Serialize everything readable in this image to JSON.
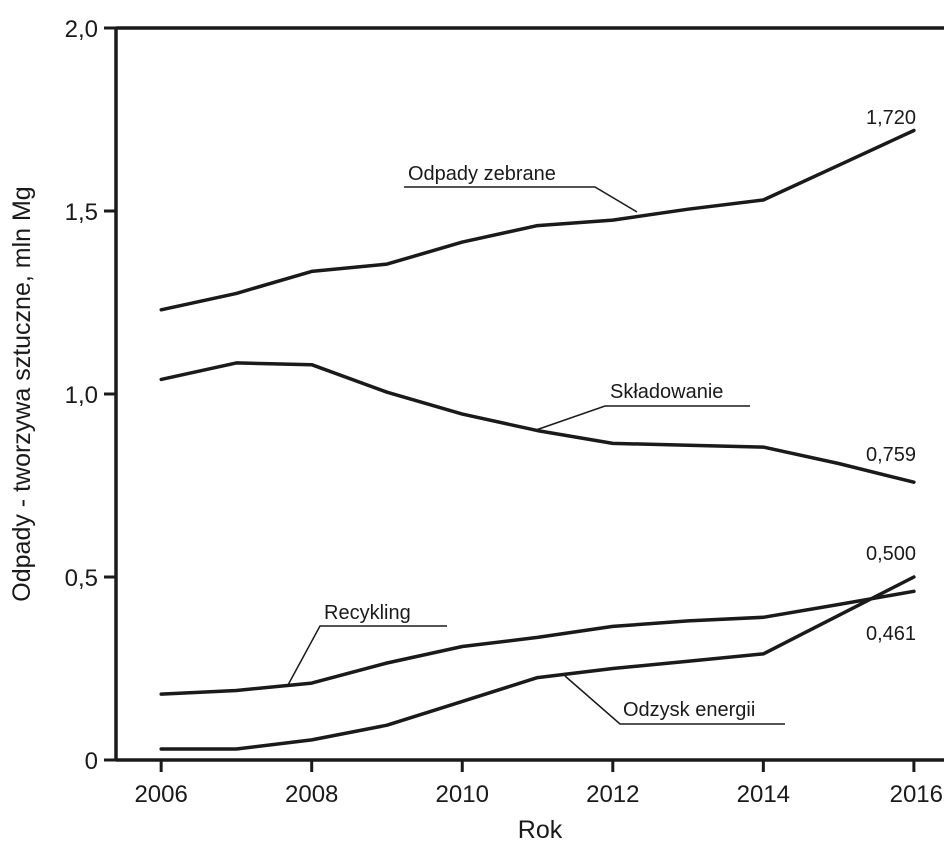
{
  "chart_data": {
    "type": "line",
    "xlabel": "Rok",
    "ylabel": "Odpady - tworzywa sztuczne, mln Mg",
    "xlim": [
      2005.4,
      2016.4
    ],
    "ylim": [
      0,
      2.0
    ],
    "grid": false,
    "x_ticks": [
      "2006",
      "2008",
      "2010",
      "2012",
      "2014",
      "2016"
    ],
    "y_ticks": [
      "0",
      "0,5",
      "1,0",
      "1,5",
      "2,0"
    ],
    "series": [
      {
        "name": "Odpady zebrane",
        "x": [
          2006,
          2007,
          2008,
          2009,
          2010,
          2011,
          2012,
          2013,
          2014,
          2015,
          2016
        ],
        "values": [
          1.23,
          1.275,
          1.335,
          1.355,
          1.415,
          1.46,
          1.475,
          1.505,
          1.53,
          1.625,
          1.72
        ]
      },
      {
        "name": "Składowanie",
        "x": [
          2006,
          2007,
          2008,
          2009,
          2010,
          2011,
          2012,
          2013,
          2014,
          2015,
          2016
        ],
        "values": [
          1.04,
          1.085,
          1.08,
          1.005,
          0.945,
          0.9,
          0.865,
          0.86,
          0.855,
          0.81,
          0.759
        ]
      },
      {
        "name": "Recykling",
        "x": [
          2006,
          2007,
          2008,
          2009,
          2010,
          2011,
          2012,
          2013,
          2014,
          2015,
          2016
        ],
        "values": [
          0.18,
          0.19,
          0.21,
          0.265,
          0.31,
          0.335,
          0.365,
          0.38,
          0.39,
          0.425,
          0.461
        ]
      },
      {
        "name": "Odzysk energii",
        "x": [
          2006,
          2007,
          2008,
          2009,
          2010,
          2011,
          2012,
          2013,
          2014,
          2015,
          2016
        ],
        "values": [
          0.03,
          0.03,
          0.055,
          0.095,
          0.16,
          0.225,
          0.25,
          0.27,
          0.29,
          0.395,
          0.5
        ]
      }
    ],
    "annotations": [
      "1,720",
      "0,759",
      "0,500",
      "0,461"
    ]
  }
}
